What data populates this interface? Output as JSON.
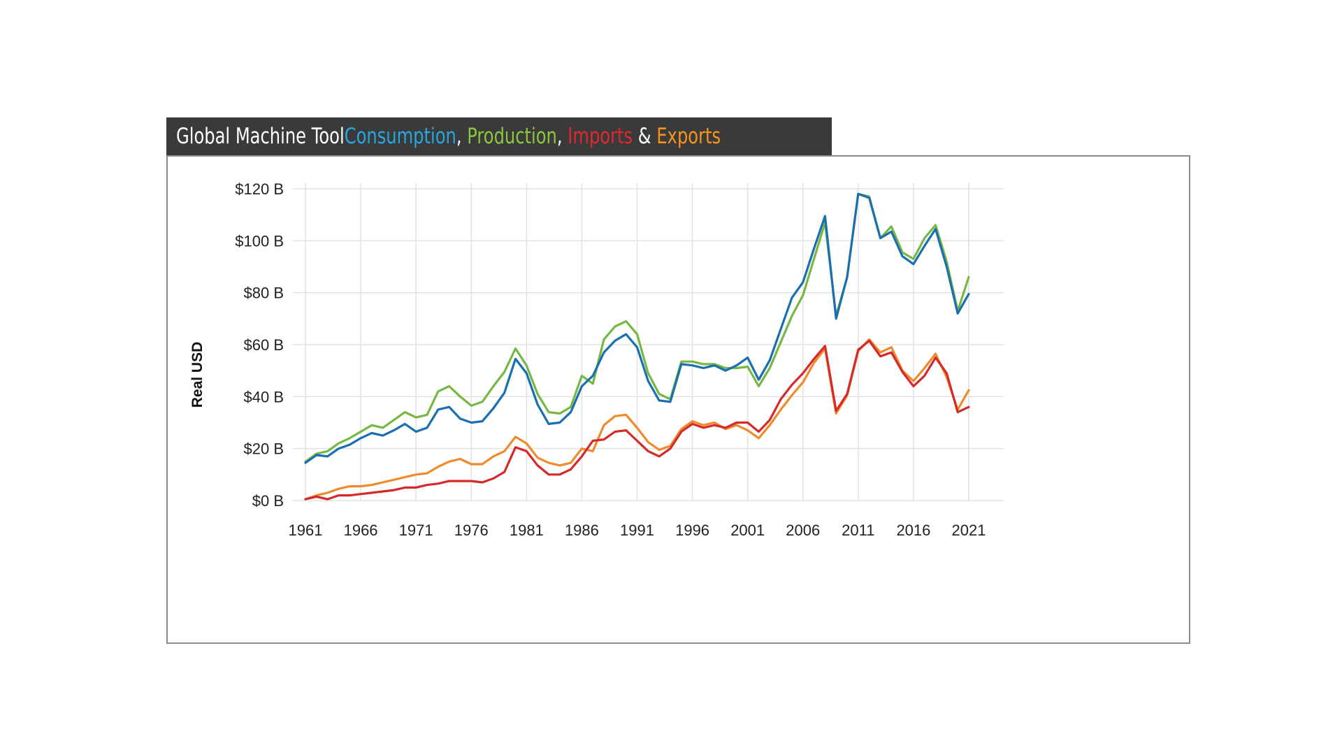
{
  "title": {
    "prefix": "Global Machine Tool ",
    "consumption": "Consumption",
    "sep1": ", ",
    "production": "Production",
    "sep2": ", ",
    "imports": "Imports",
    "amp": " & ",
    "exports": "Exports"
  },
  "colors": {
    "consumption": "#1a6fb0",
    "production": "#77b844",
    "imports": "#d62a2a",
    "exports": "#ef8b2c",
    "title_consumption": "#27a6df",
    "title_production": "#8dc63f",
    "title_imports": "#e0282e",
    "title_exports": "#f7941d"
  },
  "chart_data": {
    "type": "line",
    "title": "Global Machine Tool Consumption, Production, Imports & Exports",
    "xlabel": "",
    "ylabel": "Real USD",
    "ylim": [
      0,
      120
    ],
    "xlim": [
      1961,
      2021
    ],
    "x_ticks": [
      "1961",
      "1966",
      "1971",
      "1976",
      "1981",
      "1986",
      "1991",
      "1996",
      "2001",
      "2006",
      "2011",
      "2016",
      "2021"
    ],
    "y_ticks": [
      {
        "value": 0,
        "label": "$0 B"
      },
      {
        "value": 20,
        "label": "$20 B"
      },
      {
        "value": 40,
        "label": "$40 B"
      },
      {
        "value": 60,
        "label": "$60 B"
      },
      {
        "value": 80,
        "label": "$80 B"
      },
      {
        "value": 100,
        "label": "$100 B"
      },
      {
        "value": 120,
        "label": "$120 B"
      }
    ],
    "grid": true,
    "x": [
      1961,
      1962,
      1963,
      1964,
      1965,
      1966,
      1967,
      1968,
      1969,
      1970,
      1971,
      1972,
      1973,
      1974,
      1975,
      1976,
      1977,
      1978,
      1979,
      1980,
      1981,
      1982,
      1983,
      1984,
      1985,
      1986,
      1987,
      1988,
      1989,
      1990,
      1991,
      1992,
      1993,
      1994,
      1995,
      1996,
      1997,
      1998,
      1999,
      2000,
      2001,
      2002,
      2003,
      2004,
      2005,
      2006,
      2007,
      2008,
      2009,
      2010,
      2011,
      2012,
      2013,
      2014,
      2015,
      2016,
      2017,
      2018,
      2019,
      2020,
      2021
    ],
    "series": [
      {
        "key": "production",
        "values": [
          15,
          18,
          19,
          22,
          24,
          26.5,
          29,
          28,
          31,
          34,
          32,
          33,
          42,
          44,
          40,
          36.5,
          38,
          44,
          49.5,
          58.5,
          52,
          41,
          34,
          33.5,
          36,
          48,
          45,
          62,
          67,
          69,
          64,
          49,
          41,
          39,
          53.5,
          53.5,
          52.5,
          52.5,
          51,
          51,
          51.5,
          44,
          51,
          61,
          71,
          79,
          93,
          107,
          71,
          86,
          118,
          117,
          101,
          105.5,
          95.5,
          93,
          101,
          106,
          92,
          73,
          86
        ]
      },
      {
        "key": "consumption",
        "values": [
          14.5,
          17.5,
          17,
          20,
          21.5,
          24,
          26,
          25,
          27,
          29.5,
          26.5,
          28,
          35,
          36,
          31.5,
          30,
          30.5,
          35.5,
          41.5,
          54.5,
          49,
          37,
          29.5,
          30,
          34,
          44,
          48,
          57,
          61.5,
          64,
          59,
          46,
          38.5,
          38,
          52.5,
          52,
          51,
          52,
          50,
          52,
          55,
          46.5,
          54,
          66,
          78,
          84,
          97,
          109.5,
          70,
          86,
          118,
          116.5,
          101,
          103.5,
          94,
          91,
          98,
          104.5,
          90,
          72,
          79.5
        ]
      },
      {
        "key": "exports",
        "values": [
          0.5,
          2,
          3,
          4.5,
          5.5,
          5.5,
          6,
          7,
          8,
          9,
          10,
          10.5,
          13,
          15,
          16,
          14,
          14,
          17,
          19,
          24.5,
          22,
          16.5,
          14.5,
          13.5,
          14.5,
          20,
          19,
          29,
          32.5,
          33,
          28,
          22.5,
          19.5,
          21,
          27.5,
          30.5,
          29,
          30,
          27.5,
          29,
          27,
          24,
          29,
          35,
          40.5,
          45.5,
          53,
          58.5,
          33.5,
          40.5,
          57.5,
          62,
          57,
          59,
          50,
          46,
          51,
          56.5,
          47.5,
          35,
          42.5
        ]
      },
      {
        "key": "imports",
        "values": [
          0.5,
          1.5,
          0.5,
          2,
          2,
          2.5,
          3,
          3.5,
          4,
          5,
          5,
          6,
          6.5,
          7.5,
          7.5,
          7.5,
          7,
          8.5,
          11,
          20.5,
          19,
          13.5,
          10,
          10,
          12,
          17,
          23,
          23.5,
          26.5,
          27,
          23,
          19,
          17,
          20,
          26.5,
          29.5,
          28,
          29,
          28,
          30,
          30,
          26.5,
          31,
          39,
          44.5,
          49,
          54.5,
          59.5,
          34.5,
          41,
          58,
          61.5,
          55.5,
          57,
          49.5,
          44,
          48,
          55,
          49,
          34,
          36
        ]
      }
    ]
  }
}
